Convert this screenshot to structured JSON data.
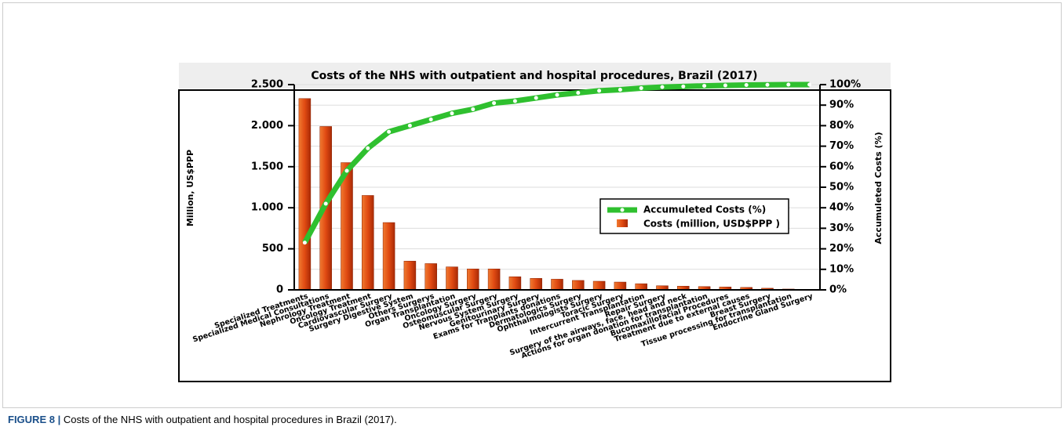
{
  "chart_data": {
    "type": "bar-line",
    "title": "Costs of the NHS with outpatient and hospital procedures, Brazil (2017)",
    "ylabel": "Million, US$PPP",
    "y2label": "Accumuleted Costs (%)",
    "categories": [
      "Specialized Treatments",
      "Specialized Medical Consultations",
      "Nephrology Treatment",
      "Oncology Treatment",
      "Cardiovascular Surgery",
      "Surgery Digestive System",
      "Others Surgerys",
      "Organ Transplantation",
      "Oncology Surgery",
      "Osteomuscular Surgery",
      "Nervous System Surgery",
      "Genitourinary Surgery",
      "Exams for Tranplants donations",
      "Dermatologics Surgery",
      "Ophthalmologists Surgery",
      "Toracic Surgery",
      "Intercurrent Transplantation",
      "Repair Surgery",
      "Surgery of the airways, face, head and neck",
      "Actions for organ donation for transplantation",
      "Bucomaxillofacial Procedures",
      "Treatment due to external causes",
      "Breast Surgery",
      "Tissue processing for transplantation",
      "Endocrine Gland Surgery"
    ],
    "series": [
      {
        "name": "Costs (million, USD$PPP )",
        "color": "#e04a12",
        "values": [
          2330,
          1990,
          1550,
          1150,
          820,
          350,
          320,
          280,
          255,
          255,
          160,
          140,
          130,
          115,
          105,
          95,
          75,
          50,
          45,
          40,
          35,
          30,
          20,
          10,
          5
        ]
      },
      {
        "name": "Accumuleted Costs (%)",
        "color": "#2fc02f",
        "axis": "y2",
        "values": [
          23,
          42,
          58,
          69,
          77,
          80,
          83,
          86,
          88,
          91,
          92,
          93.5,
          95,
          96,
          97,
          97.5,
          98.3,
          98.8,
          99.1,
          99.4,
          99.6,
          99.8,
          99.9,
          100,
          100
        ]
      }
    ],
    "ylim": [
      0,
      2500
    ],
    "yticks": [
      0,
      500,
      {
        "value": 1000,
        "label": "1.000"
      },
      {
        "value": 1500,
        "label": "1.500"
      },
      {
        "value": 2000,
        "label": "2.000"
      },
      {
        "value": 2500,
        "label": "2.500"
      }
    ],
    "y2lim": [
      0,
      100
    ],
    "y2ticks": [
      {
        "value": 0,
        "label": "0%"
      },
      {
        "value": 10,
        "label": "10%"
      },
      {
        "value": 20,
        "label": "20%"
      },
      {
        "value": 30,
        "label": "30%"
      },
      {
        "value": 40,
        "label": "40%"
      },
      {
        "value": 50,
        "label": "50%"
      },
      {
        "value": 60,
        "label": "60%"
      },
      {
        "value": 70,
        "label": "70%"
      },
      {
        "value": 80,
        "label": "80%"
      },
      {
        "value": 90,
        "label": "90%"
      },
      {
        "value": 100,
        "label": "100%"
      }
    ],
    "grid": true
  },
  "caption": {
    "label": "FIGURE 8 |",
    "text": "Costs of the NHS with outpatient and hospital procedures in Brazil (2017)."
  }
}
